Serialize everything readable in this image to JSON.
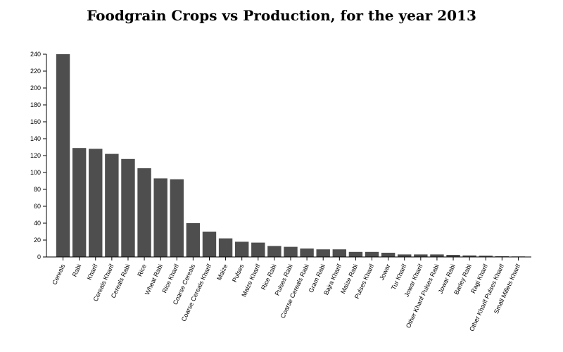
{
  "chart_data": {
    "type": "bar",
    "title": "Foodgrain Crops vs Production, for the year 2013",
    "xlabel": "",
    "ylabel": "",
    "ylim": [
      0,
      240
    ],
    "yticks": [
      0,
      20,
      40,
      60,
      80,
      100,
      120,
      140,
      160,
      180,
      200,
      220,
      240
    ],
    "bar_color": "#4e4e4e",
    "categories": [
      "Cereals",
      "Rabi",
      "Kharif",
      "Cereals Kharif",
      "Cereals Rabi",
      "Rice",
      "Wheat Rabi",
      "Rice Kharif",
      "Coarse Cereals",
      "Coarse Cereals Kharif",
      "Maize",
      "Pulses",
      "Maize Kharif",
      "Rice Rabi",
      "Pulses Rabi",
      "Coarse Cereals Rabi",
      "Gram Rabi",
      "Bajra Kharif",
      "Maize Rabi",
      "Pulses Kharif",
      "Jowar",
      "Tur Kharif",
      "Jowar Kharif",
      "Other Kharif Pulses Rabi",
      "Jowar Rabi",
      "Barley Rabi",
      "Ragi Kharif",
      "Other Kharif Pulses Kharif",
      "Small Millets Kharif"
    ],
    "values": [
      240,
      129,
      128,
      122,
      116,
      105,
      93,
      92,
      40,
      30,
      22,
      18,
      17,
      13,
      12,
      10,
      9,
      9,
      6,
      6,
      5,
      3,
      3,
      3,
      2.5,
      1.8,
      1.5,
      0.8,
      0.6
    ]
  }
}
